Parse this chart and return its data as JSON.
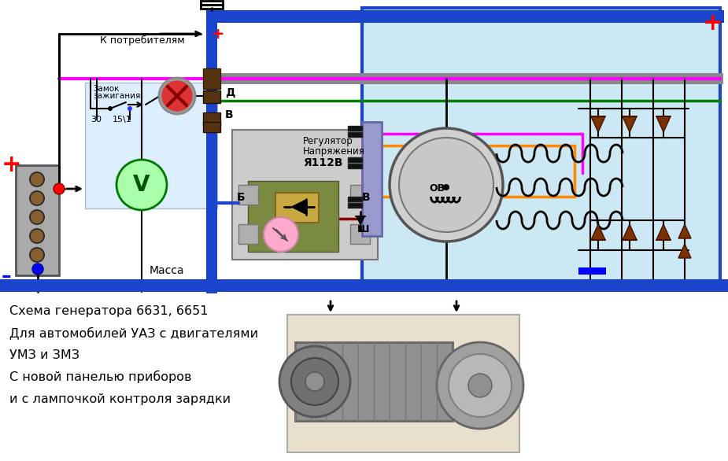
{
  "bg_color": "#ffffff",
  "diagram_bg": "#cce8f4",
  "left_panel_bg": "#d6eaf8",
  "fig_width": 9.25,
  "fig_height": 5.86,
  "caption_lines": [
    "Схема генератора 6631, 6651",
    "Для автомобилей УАЗ с двигателями",
    "УМЗ и ЗМЗ",
    "С новой панелью приборов",
    "и с лампочкой контроля зарядки"
  ],
  "dark_blue": "#1a44cc",
  "blue_border": "#1a44cc",
  "green_wire": "#008000",
  "magenta_wire": "#ff00ff",
  "orange_wire": "#ff8800",
  "dark_red_wire": "#8b0000",
  "gray_bus": "#888888",
  "olive_reg": "#7a8a40",
  "caption_fontsize": 11.5
}
